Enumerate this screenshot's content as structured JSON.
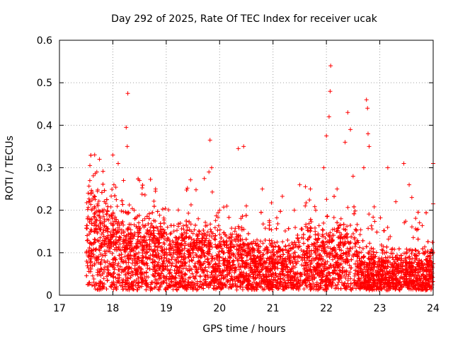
{
  "chart_data": {
    "type": "scatter",
    "title": "Day 292 of 2025, Rate Of TEC Index for receiver ucak",
    "xlabel": "GPS time / hours",
    "ylabel": "ROTI / TECUs",
    "xlim": [
      17,
      24
    ],
    "ylim": [
      0,
      0.6
    ],
    "xticks": [
      "17",
      "18",
      "19",
      "20",
      "21",
      "22",
      "23",
      "24"
    ],
    "yticks": [
      "0",
      "0.1",
      "0.2",
      "0.3",
      "0.4",
      "0.5",
      "0.6"
    ],
    "grid": true,
    "marker": "+",
    "color": "#ff0000",
    "series": [
      {
        "x_start": 17.5,
        "x_end": 24.0,
        "sample_points": [
          [
            17.55,
            0.09
          ],
          [
            17.6,
            0.18
          ],
          [
            17.65,
            0.15
          ],
          [
            17.7,
            0.29
          ],
          [
            17.75,
            0.32
          ],
          [
            17.8,
            0.2
          ],
          [
            17.85,
            0.12
          ],
          [
            17.9,
            0.08
          ],
          [
            17.95,
            0.05
          ],
          [
            18.0,
            0.33
          ],
          [
            18.02,
            0.26
          ],
          [
            18.1,
            0.31
          ],
          [
            18.2,
            0.27
          ],
          [
            18.25,
            0.395
          ],
          [
            18.27,
            0.35
          ],
          [
            18.28,
            0.475
          ],
          [
            18.4,
            0.2
          ],
          [
            18.5,
            0.27
          ],
          [
            18.6,
            0.18
          ],
          [
            18.8,
            0.25
          ],
          [
            18.9,
            0.15
          ],
          [
            19.0,
            0.1
          ],
          [
            19.2,
            0.13
          ],
          [
            19.4,
            0.16
          ],
          [
            19.6,
            0.18
          ],
          [
            19.8,
            0.29
          ],
          [
            19.82,
            0.365
          ],
          [
            19.85,
            0.3
          ],
          [
            20.0,
            0.2
          ],
          [
            20.2,
            0.12
          ],
          [
            20.35,
            0.345
          ],
          [
            20.45,
            0.35
          ],
          [
            20.5,
            0.21
          ],
          [
            20.7,
            0.13
          ],
          [
            20.8,
            0.25
          ],
          [
            21.0,
            0.1
          ],
          [
            21.2,
            0.08
          ],
          [
            21.4,
            0.2
          ],
          [
            21.5,
            0.26
          ],
          [
            21.7,
            0.25
          ],
          [
            21.8,
            0.2
          ],
          [
            21.95,
            0.3
          ],
          [
            22.0,
            0.375
          ],
          [
            22.05,
            0.42
          ],
          [
            22.07,
            0.48
          ],
          [
            22.08,
            0.54
          ],
          [
            22.2,
            0.25
          ],
          [
            22.35,
            0.36
          ],
          [
            22.4,
            0.43
          ],
          [
            22.45,
            0.39
          ],
          [
            22.5,
            0.28
          ],
          [
            22.7,
            0.3
          ],
          [
            22.75,
            0.46
          ],
          [
            22.77,
            0.44
          ],
          [
            22.78,
            0.38
          ],
          [
            22.8,
            0.35
          ],
          [
            23.0,
            0.08
          ],
          [
            23.15,
            0.3
          ],
          [
            23.3,
            0.22
          ],
          [
            23.45,
            0.31
          ],
          [
            23.55,
            0.26
          ],
          [
            23.6,
            0.23
          ],
          [
            23.8,
            0.06
          ],
          [
            24.0,
            0.31
          ],
          [
            24.0,
            0.215
          ]
        ]
      }
    ]
  }
}
